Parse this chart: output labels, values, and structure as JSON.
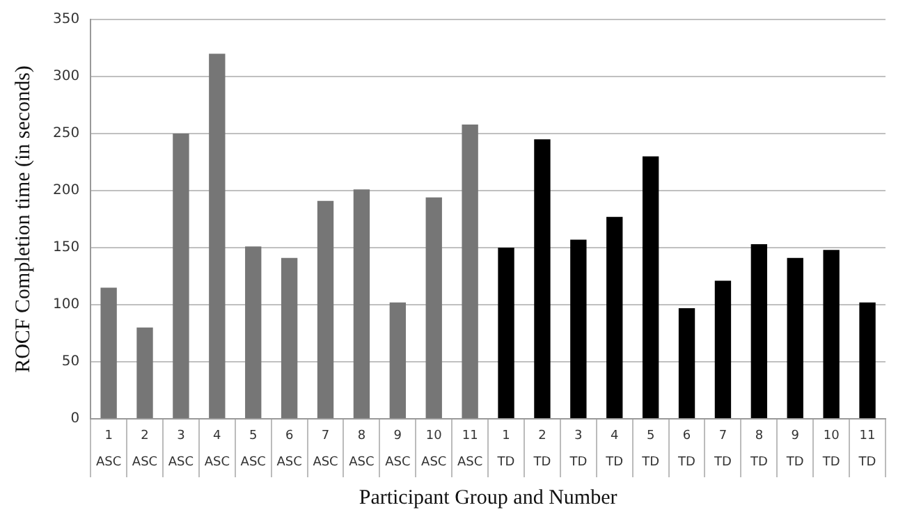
{
  "chart_data": {
    "type": "bar",
    "xlabel": "Participant Group and Number",
    "ylabel": "ROCF Completion time (in seconds)",
    "categories": [
      "1\nASC",
      "2\nASC",
      "3\nASC",
      "4\nASC",
      "5\nASC",
      "6\nASC",
      "7\nASC",
      "8\nASC",
      "9\nASC",
      "10\nASC",
      "11\nASC",
      "1\nTD",
      "2\nTD",
      "3\nTD",
      "4\nTD",
      "5\nTD",
      "6\nTD",
      "7\nTD",
      "8\nTD",
      "9\nTD",
      "10\nTD",
      "11\nTD"
    ],
    "values": [
      115,
      80,
      250,
      320,
      151,
      141,
      191,
      201,
      102,
      194,
      258,
      150,
      245,
      157,
      177,
      230,
      97,
      121,
      153,
      141,
      148,
      102
    ],
    "colors": [
      "#767676",
      "#767676",
      "#767676",
      "#767676",
      "#767676",
      "#767676",
      "#767676",
      "#767676",
      "#767676",
      "#767676",
      "#767676",
      "#000000",
      "#000000",
      "#000000",
      "#000000",
      "#000000",
      "#000000",
      "#000000",
      "#000000",
      "#000000",
      "#000000",
      "#000000"
    ],
    "ylim": [
      0,
      350
    ],
    "yticks": [
      0,
      50,
      100,
      150,
      200,
      250,
      300,
      350
    ],
    "grid": "y",
    "legend": false
  }
}
